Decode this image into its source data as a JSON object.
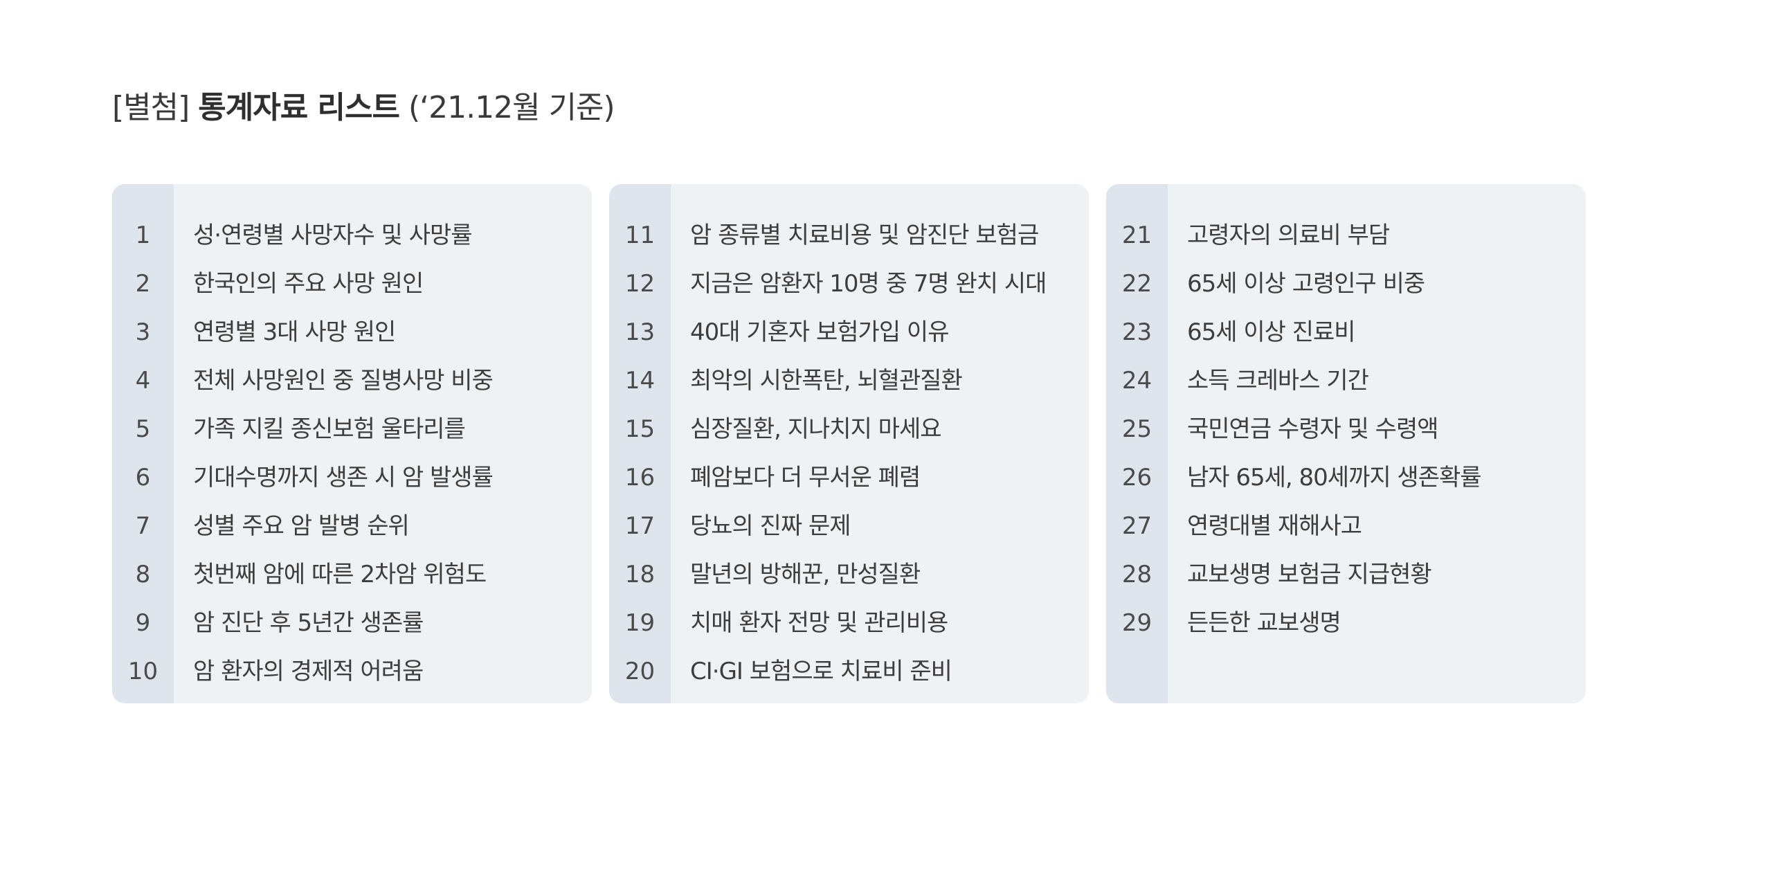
{
  "title": {
    "prefix": "[별첨]",
    "bold": "통계자료 리스트",
    "suffix": "(‘21.12월 기준)"
  },
  "columns": [
    {
      "items": [
        {
          "num": "1",
          "label": "성·연령별 사망자수 및 사망률"
        },
        {
          "num": "2",
          "label": "한국인의 주요 사망 원인"
        },
        {
          "num": "3",
          "label": "연령별 3대 사망 원인"
        },
        {
          "num": "4",
          "label": "전체 사망원인 중 질병사망 비중"
        },
        {
          "num": "5",
          "label": "가족 지킬 종신보험 울타리를"
        },
        {
          "num": "6",
          "label": "기대수명까지 생존 시 암 발생률"
        },
        {
          "num": "7",
          "label": "성별 주요 암 발병 순위"
        },
        {
          "num": "8",
          "label": "첫번째 암에 따른 2차암 위험도"
        },
        {
          "num": "9",
          "label": "암 진단 후 5년간 생존률"
        },
        {
          "num": "10",
          "label": "암 환자의 경제적 어려움"
        }
      ]
    },
    {
      "items": [
        {
          "num": "11",
          "label": "암 종류별 치료비용 및 암진단 보험금"
        },
        {
          "num": "12",
          "label": "지금은 암환자 10명 중 7명 완치 시대"
        },
        {
          "num": "13",
          "label": "40대 기혼자 보험가입 이유"
        },
        {
          "num": "14",
          "label": "최악의 시한폭탄, 뇌혈관질환"
        },
        {
          "num": "15",
          "label": "심장질환, 지나치지 마세요"
        },
        {
          "num": "16",
          "label": "폐암보다 더 무서운 폐렴"
        },
        {
          "num": "17",
          "label": "당뇨의 진짜 문제"
        },
        {
          "num": "18",
          "label": "말년의 방해꾼, 만성질환"
        },
        {
          "num": "19",
          "label": "치매 환자 전망 및 관리비용"
        },
        {
          "num": "20",
          "label": "CI·GI 보험으로 치료비 준비"
        }
      ]
    },
    {
      "items": [
        {
          "num": "21",
          "label": "고령자의 의료비 부담"
        },
        {
          "num": "22",
          "label": "65세 이상 고령인구 비중"
        },
        {
          "num": "23",
          "label": "65세 이상 진료비"
        },
        {
          "num": "24",
          "label": "소득 크레바스 기간"
        },
        {
          "num": "25",
          "label": "국민연금 수령자 및 수령액"
        },
        {
          "num": "26",
          "label": "남자 65세, 80세까지 생존확률"
        },
        {
          "num": "27",
          "label": "연령대별 재해사고"
        },
        {
          "num": "28",
          "label": "교보생명 보험금 지급현황"
        },
        {
          "num": "29",
          "label": "든든한 교보생명"
        }
      ]
    }
  ]
}
